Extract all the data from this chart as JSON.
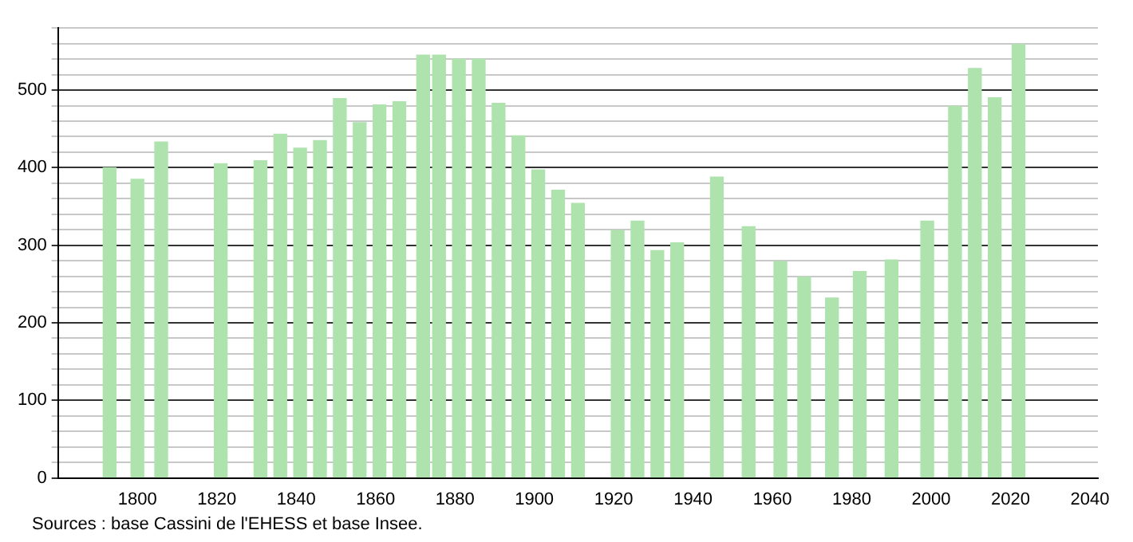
{
  "chart_data": {
    "type": "bar",
    "x": [
      1793,
      1800,
      1806,
      1821,
      1831,
      1836,
      1841,
      1846,
      1851,
      1856,
      1861,
      1866,
      1872,
      1876,
      1881,
      1886,
      1891,
      1896,
      1901,
      1906,
      1911,
      1921,
      1926,
      1931,
      1936,
      1946,
      1954,
      1962,
      1968,
      1975,
      1982,
      1990,
      1999,
      2006,
      2011,
      2016,
      2022
    ],
    "values": [
      400,
      385,
      433,
      405,
      409,
      443,
      425,
      435,
      489,
      458,
      481,
      485,
      545,
      545,
      540,
      540,
      483,
      441,
      397,
      371,
      354,
      319,
      331,
      293,
      303,
      388,
      324,
      279,
      259,
      232,
      266,
      281,
      331,
      479,
      528,
      490,
      559
    ],
    "color": "#aee3ae",
    "xlim": [
      1780,
      2042
    ],
    "xticks": [
      1800,
      1820,
      1840,
      1860,
      1880,
      1900,
      1920,
      1940,
      1960,
      1980,
      2000,
      2020,
      2040
    ],
    "ylim": [
      0,
      580
    ],
    "yticks": [
      0,
      {
        "value": 20,
        "label": null
      },
      {
        "value": 40,
        "label": null
      },
      {
        "value": 60,
        "label": null
      },
      {
        "value": 80,
        "label": null
      },
      100,
      {
        "value": 120,
        "label": null
      },
      {
        "value": 140,
        "label": null
      },
      {
        "value": 160,
        "label": null
      },
      {
        "value": 180,
        "label": null
      },
      200,
      {
        "value": 220,
        "label": null
      },
      {
        "value": 240,
        "label": null
      },
      {
        "value": 260,
        "label": null
      },
      {
        "value": 280,
        "label": null
      },
      300,
      {
        "value": 320,
        "label": null
      },
      {
        "value": 340,
        "label": null
      },
      {
        "value": 360,
        "label": null
      },
      {
        "value": 380,
        "label": null
      },
      400,
      {
        "value": 420,
        "label": null
      },
      {
        "value": 440,
        "label": null
      },
      {
        "value": 460,
        "label": null
      },
      {
        "value": 480,
        "label": null
      },
      500,
      {
        "value": 520,
        "label": null
      },
      {
        "value": 540,
        "label": null
      },
      {
        "value": 560,
        "label": null
      },
      {
        "value": 580,
        "label": null
      }
    ],
    "grid": "y",
    "annotations": [
      "Sources : base Cassini de l'EHESS et base Insee."
    ]
  }
}
